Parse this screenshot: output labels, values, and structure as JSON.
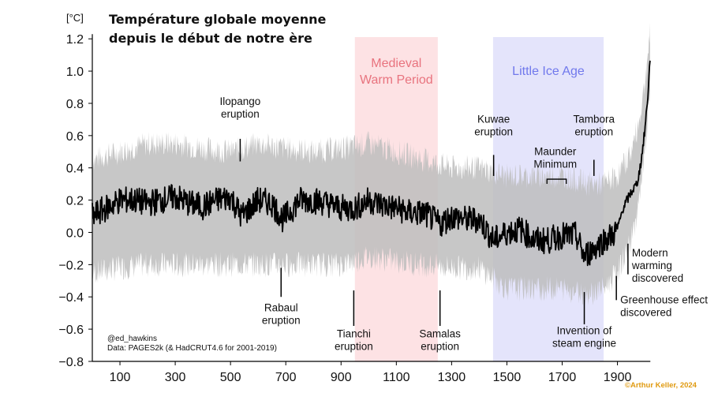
{
  "chart_data": {
    "type": "line",
    "title_lines": [
      "Température globale moyenne",
      "depuis le début de notre ère"
    ],
    "unit_label": "[°C]",
    "xlim": [
      0,
      2024
    ],
    "ylim": [
      -0.8,
      1.25
    ],
    "x_ticks": [
      100,
      300,
      500,
      700,
      900,
      1100,
      1300,
      1500,
      1700,
      1900
    ],
    "y_ticks": [
      {
        "value": 1.2,
        "label": "1.2"
      },
      {
        "value": 1.0,
        "label": "1.0"
      },
      {
        "value": 0.8,
        "label": "0.8"
      },
      {
        "value": 0.6,
        "label": "0.6"
      },
      {
        "value": 0.4,
        "label": "0.4"
      },
      {
        "value": 0.2,
        "label": "0.2"
      },
      {
        "value": 0.0,
        "label": "0.0"
      },
      {
        "value": -0.2,
        "label": "−0.2"
      },
      {
        "value": -0.4,
        "label": "−0.4"
      },
      {
        "value": -0.6,
        "label": "−0.6"
      },
      {
        "value": -0.8,
        "label": "−0.8"
      }
    ],
    "periods": [
      {
        "lines": [
          "Medieval",
          "Warm Period"
        ],
        "x_start": 950,
        "x_end": 1250,
        "fill": "#fde2e4",
        "text_color": "#e8737e"
      },
      {
        "lines": [
          "Little Ice Age"
        ],
        "x_start": 1450,
        "x_end": 1850,
        "fill": "#e4e4fb",
        "text_color": "#7078ec"
      }
    ],
    "series": [
      {
        "role": "median",
        "color": "#000000",
        "x": [
          0,
          50,
          100,
          150,
          200,
          250,
          300,
          350,
          400,
          450,
          500,
          540,
          600,
          650,
          690,
          750,
          800,
          850,
          900,
          950,
          1000,
          1050,
          1100,
          1150,
          1200,
          1258,
          1300,
          1350,
          1400,
          1452,
          1500,
          1550,
          1600,
          1650,
          1700,
          1750,
          1780,
          1815,
          1850,
          1880,
          1900,
          1920,
          1950,
          1970,
          1980,
          1990,
          2000,
          2010,
          2019
        ],
        "y": [
          0.1,
          0.15,
          0.2,
          0.2,
          0.18,
          0.2,
          0.22,
          0.18,
          0.16,
          0.2,
          0.22,
          0.1,
          0.2,
          0.18,
          0.08,
          0.2,
          0.2,
          0.18,
          0.15,
          0.15,
          0.2,
          0.17,
          0.15,
          0.12,
          0.12,
          0.05,
          0.1,
          0.08,
          0.08,
          -0.05,
          0.0,
          0.02,
          -0.05,
          -0.05,
          -0.02,
          -0.02,
          -0.15,
          -0.1,
          -0.05,
          -0.02,
          0.02,
          0.15,
          0.25,
          0.3,
          0.38,
          0.5,
          0.65,
          0.85,
          1.1
        ]
      },
      {
        "role": "uncertainty-band",
        "color": "#bdbdbd",
        "x": [
          0,
          100,
          200,
          300,
          400,
          500,
          600,
          700,
          800,
          900,
          1000,
          1100,
          1200,
          1300,
          1400,
          1500,
          1600,
          1700,
          1800,
          1850,
          1900,
          1950,
          1980,
          2000,
          2019
        ],
        "y_low": [
          -0.25,
          -0.22,
          -0.2,
          -0.2,
          -0.2,
          -0.2,
          -0.2,
          -0.2,
          -0.2,
          -0.2,
          -0.15,
          -0.18,
          -0.2,
          -0.22,
          -0.22,
          -0.35,
          -0.35,
          -0.35,
          -0.38,
          -0.35,
          -0.25,
          -0.05,
          0.2,
          0.5,
          0.9
        ],
        "y_high": [
          0.45,
          0.5,
          0.55,
          0.55,
          0.52,
          0.5,
          0.55,
          0.52,
          0.5,
          0.52,
          0.55,
          0.5,
          0.45,
          0.4,
          0.4,
          0.35,
          0.35,
          0.35,
          0.3,
          0.3,
          0.35,
          0.5,
          0.7,
          0.95,
          1.25
        ]
      }
    ],
    "annotations": [
      {
        "lines": [
          "Ilopango",
          "eruption"
        ],
        "x": 535,
        "line_from": 0.58,
        "line_to": 0.44,
        "text_y": 0.79
      },
      {
        "lines": [
          "Rabaul",
          "eruption"
        ],
        "x": 683,
        "line_from": -0.22,
        "line_to": -0.4,
        "text_y": -0.49
      },
      {
        "lines": [
          "Tianchi",
          "eruption"
        ],
        "x": 946,
        "line_from": -0.36,
        "line_to": -0.58,
        "text_y": -0.65
      },
      {
        "lines": [
          "Samalas",
          "eruption"
        ],
        "x": 1258,
        "line_from": -0.36,
        "line_to": -0.58,
        "text_y": -0.65
      },
      {
        "lines": [
          "Kuwae",
          "eruption"
        ],
        "x": 1452,
        "line_from": 0.48,
        "line_to": 0.35,
        "text_y": 0.68
      },
      {
        "lines": [
          "Tambora",
          "eruption"
        ],
        "x": 1815,
        "line_from": 0.45,
        "line_to": 0.35,
        "text_y": 0.68
      },
      {
        "lines": [
          "Maunder",
          "Minimum"
        ],
        "x": 1675,
        "line_from": 0.33,
        "line_to": 0.3,
        "text_y": 0.48
      },
      {
        "lines": [
          "Invention of",
          "steam engine"
        ],
        "x": 1780,
        "line_from": -0.37,
        "line_to": -0.57,
        "text_y": -0.63
      },
      {
        "lines": [
          "Modern",
          "warming",
          "discovered"
        ],
        "x": 1938,
        "line_from": -0.07,
        "line_to": -0.26,
        "text_y": -0.15
      },
      {
        "lines": [
          "Greenhouse effect",
          "discovered"
        ],
        "x": 1896,
        "line_from": -0.27,
        "line_to": -0.42,
        "text_y": -0.44
      }
    ],
    "source_lines": [
      "@ed_hawkins",
      "Data: PAGES2k (& HadCRUT4.6 for 2001-2019)"
    ],
    "credit": "©Arthur Keller, 2024",
    "grid": false
  }
}
